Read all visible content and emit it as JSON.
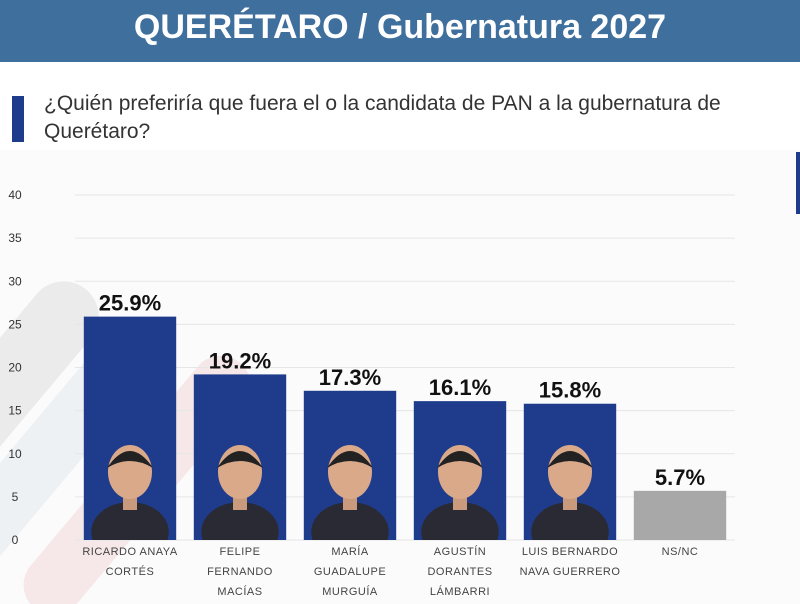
{
  "chart_data": {
    "type": "bar",
    "title": "QUERÉTARO / Gubernatura 2027",
    "subtitle": "¿Quién preferiría que fuera el o la candidata de PAN a la gubernatura de Querétaro?",
    "categories": [
      "RICARDO ANAYA CORTÉS",
      "FELIPE FERNANDO MACÍAS",
      "MARÍA GUADALUPE MURGUÍA GUTIÉRREZ",
      "AGUSTÍN DORANTES LÁMBARRI",
      "LUIS BERNARDO NAVA GUERRERO",
      "NS/NC"
    ],
    "values": [
      25.9,
      19.2,
      17.3,
      16.1,
      15.8,
      5.7
    ],
    "value_labels": [
      "25.9%",
      "19.2%",
      "17.3%",
      "16.1%",
      "15.8%",
      "5.7%"
    ],
    "colors": [
      "#1f3c8c",
      "#1f3c8c",
      "#1f3c8c",
      "#1f3c8c",
      "#1f3c8c",
      "#a8a8a8"
    ],
    "ylim": [
      0,
      40
    ],
    "yticks": [
      0,
      5,
      10,
      15,
      20,
      25,
      30,
      35,
      40
    ],
    "grid": true
  }
}
